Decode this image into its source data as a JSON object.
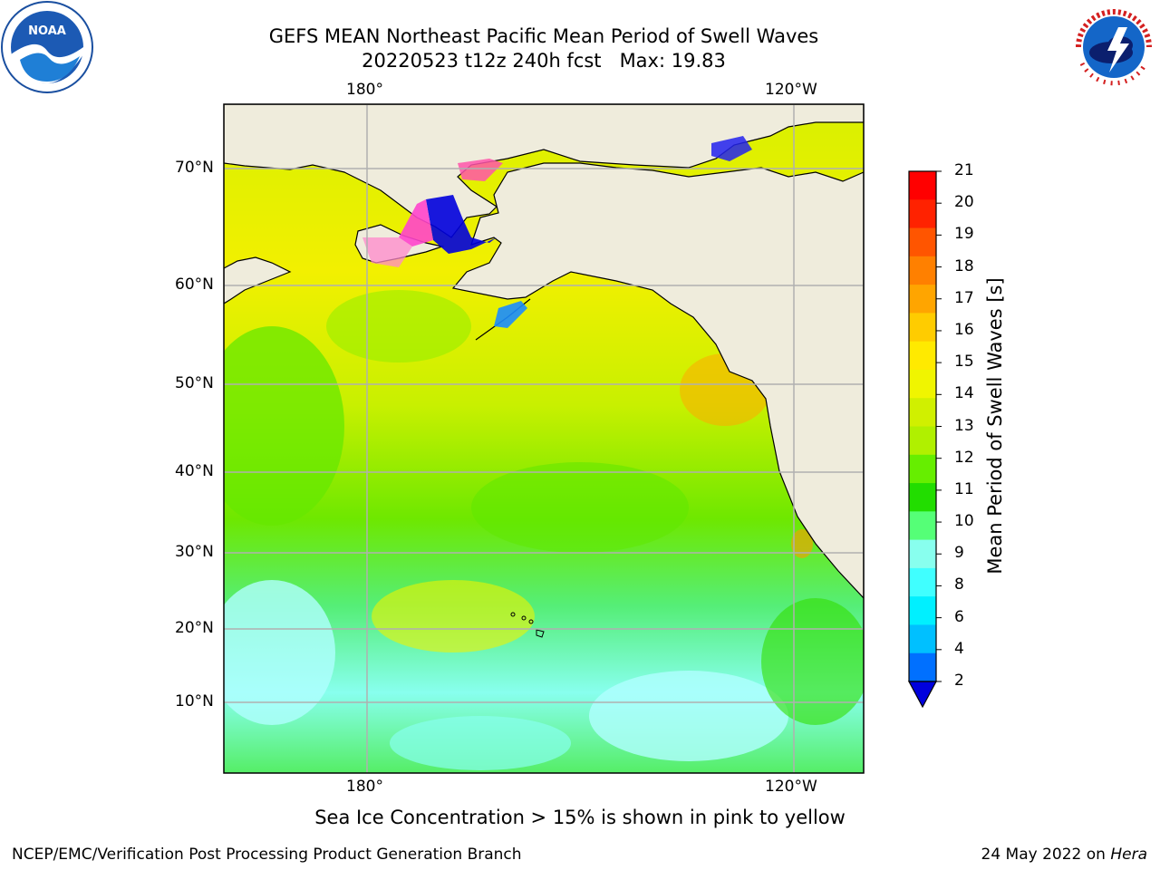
{
  "header": {
    "title_line1": "GEFS MEAN Northeast Pacific Mean Period of Swell Waves",
    "title_line2": "20220523 t12z 240h fcst   Max: 19.83"
  },
  "logos": {
    "left": "noaa-logo",
    "left_text": "NOAA",
    "right": "national-weather-service-logo",
    "right_text": "NATIONAL WEATHER SERVICE"
  },
  "map": {
    "top_lon_labels": [
      "180°",
      "120°W"
    ],
    "bottom_lon_labels": [
      "180°",
      "120°W"
    ],
    "lat_labels": [
      "70°N",
      "60°N",
      "50°N",
      "40°N",
      "30°N",
      "20°N",
      "10°N"
    ],
    "colors": {
      "land": "#efecdc",
      "grid": "#b0b0b0",
      "coast": "#000000"
    }
  },
  "colorbar": {
    "title": "Mean Period of Swell Waves [s]",
    "ticks": [
      "21",
      "20",
      "19",
      "18",
      "17",
      "16",
      "15",
      "14",
      "13",
      "12",
      "11",
      "10",
      "9",
      "8",
      "6",
      "4",
      "2"
    ],
    "colors_top_to_bottom": [
      "#ff0000",
      "#ff2200",
      "#ff5500",
      "#ff8000",
      "#ffa500",
      "#ffcc00",
      "#ffea00",
      "#f0f500",
      "#d0f000",
      "#b0f000",
      "#66ee00",
      "#22dd00",
      "#55ff77",
      "#88ffee",
      "#40ffff",
      "#00f0ff",
      "#00c0ff",
      "#0070ff"
    ],
    "extend_color": "#0000dd"
  },
  "footer": {
    "note": "Sea Ice Concentration > 15% is shown in pink to yellow",
    "left": "NCEP/EMC/Verification Post Processing Product Generation Branch",
    "right_date": "24 May 2022 on ",
    "right_host": "Hera"
  }
}
